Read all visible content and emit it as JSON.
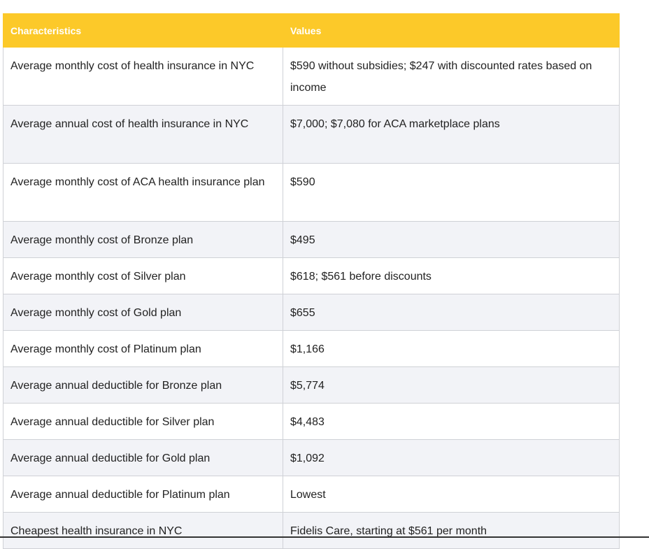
{
  "table": {
    "header": [
      "Characteristics",
      "Values"
    ],
    "rows": [
      [
        "Average monthly cost of health insurance in NYC",
        "$590 without subsidies; $247 with discounted rates based on income"
      ],
      [
        "Average annual cost of health insurance in NYC",
        "$7,000; $7,080 for ACA marketplace plans"
      ],
      [
        "Average monthly cost of ACA health insurance plan",
        "$590"
      ],
      [
        "Average monthly cost of Bronze plan",
        "$495"
      ],
      [
        "Average monthly cost of Silver plan",
        "$618; $561 before discounts"
      ],
      [
        "Average monthly cost of Gold plan",
        "$655"
      ],
      [
        "Average monthly cost of Platinum plan",
        "$1,166"
      ],
      [
        "Average annual deductible for Bronze plan",
        "$5,774"
      ],
      [
        "Average annual deductible for Silver plan",
        "$4,483"
      ],
      [
        "Average annual deductible for Gold plan",
        "$1,092"
      ],
      [
        "Average annual deductible for Platinum plan",
        "Lowest"
      ],
      [
        "Cheapest health insurance in NYC",
        "Fidelis Care, starting at $561 per month"
      ]
    ]
  }
}
